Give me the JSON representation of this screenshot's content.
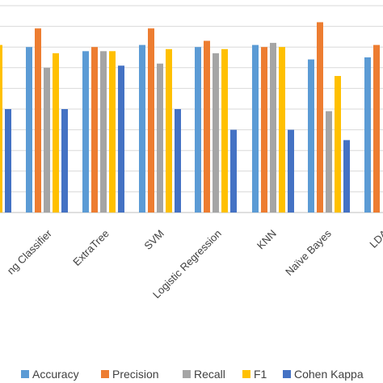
{
  "chart_data": {
    "type": "bar",
    "title": "",
    "xlabel": "",
    "ylabel": "",
    "grid": true,
    "legend_position": "bottom",
    "categories": [
      "Bagging Classifier",
      "ExtraTree",
      "SVM",
      "Logistic Regression",
      "KNN",
      "Naïve Bayes",
      "LDA"
    ],
    "visible_category_labels": [
      "ng Classifier",
      "ExtraTree",
      "SVM",
      "Logistic Regression",
      "KNN",
      "Naïve Bayes",
      "LDA"
    ],
    "series": [
      {
        "name": "Accuracy",
        "color": "#5B9BD5",
        "values": [
          0.8,
          0.78,
          0.81,
          0.8,
          0.81,
          0.74,
          0.75
        ]
      },
      {
        "name": "Precision",
        "color": "#ED7D31",
        "values": [
          0.89,
          0.8,
          0.89,
          0.83,
          0.8,
          0.92,
          0.81
        ]
      },
      {
        "name": "Recall",
        "color": "#A5A5A5",
        "values": [
          0.7,
          0.78,
          0.72,
          0.77,
          0.82,
          0.49,
          null
        ]
      },
      {
        "name": "F1",
        "color": "#FFC000",
        "values": [
          0.77,
          0.78,
          0.79,
          0.79,
          0.8,
          0.66,
          null
        ]
      },
      {
        "name": "Cohen Kappa",
        "color": "#4472C4",
        "values": [
          0.5,
          0.71,
          0.5,
          0.4,
          0.4,
          0.35,
          null
        ]
      }
    ],
    "left_edge_partial": {
      "F1": 0.81,
      "Cohen Kappa": 0.5
    }
  }
}
